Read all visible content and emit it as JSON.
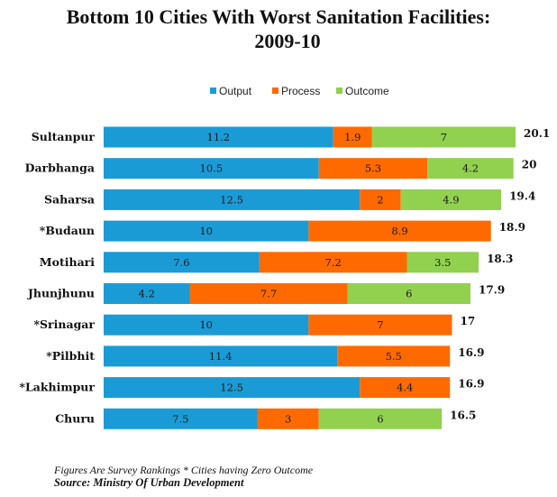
{
  "title_line1": "Bottom 10 Cities With Worst Sanitation Facilities:",
  "title_line2": "2009-10",
  "footnote": "Figures Are Survey Rankings * Cities having Zero Outcome",
  "source": "Source: Ministry Of Urban Development",
  "colors": {
    "output": "#1b9bd6",
    "process": "#ff6a00",
    "outcome": "#92d050"
  },
  "chart_data": {
    "type": "bar",
    "orientation": "horizontal",
    "stacked": true,
    "title": "Bottom 10 Cities With Worst Sanitation Facilities: 2009-10",
    "legend_position": "top",
    "grid": false,
    "categories": [
      "Sultanpur",
      "Darbhanga",
      "Saharsa",
      "*Budaun",
      "Motihari",
      "Jhunjhunu",
      "*Srinagar",
      "*Pilbhit",
      "*Lakhimpur",
      "Churu"
    ],
    "series": [
      {
        "name": "Output",
        "values": [
          11.2,
          10.5,
          12.5,
          10,
          7.6,
          4.2,
          10,
          11.4,
          12.5,
          7.5
        ]
      },
      {
        "name": "Process",
        "values": [
          1.9,
          5.3,
          2,
          8.9,
          7.2,
          7.7,
          7,
          5.5,
          4.4,
          3
        ]
      },
      {
        "name": "Outcome",
        "values": [
          7,
          4.2,
          4.9,
          null,
          3.5,
          6,
          null,
          null,
          null,
          6
        ]
      }
    ],
    "totals": [
      20.1,
      20,
      19.4,
      18.9,
      18.3,
      17.9,
      17,
      16.9,
      16.9,
      16.5
    ],
    "xlim": [
      0,
      20.1
    ]
  }
}
